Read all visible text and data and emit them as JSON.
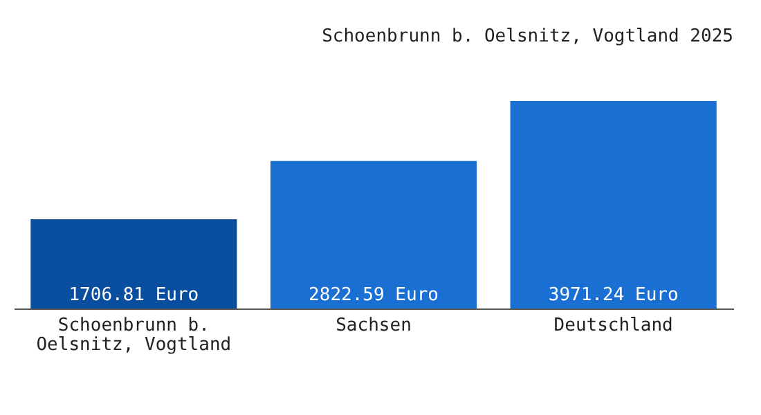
{
  "chart_data": {
    "type": "bar",
    "title": "Schoenbrunn b. Oelsnitz, Vogtland 2025",
    "categories": [
      "Schoenbrunn b. Oelsnitz, Vogtland",
      "Sachsen",
      "Deutschland"
    ],
    "values": [
      1706.81,
      2822.59,
      3971.24
    ],
    "value_labels": [
      "1706.81 Euro",
      "2822.59 Euro",
      "3971.24 Euro"
    ],
    "colors": [
      "#0a4f9f",
      "#1a6fd2",
      "#1a6fd2"
    ],
    "grid": false,
    "legend": false
  }
}
